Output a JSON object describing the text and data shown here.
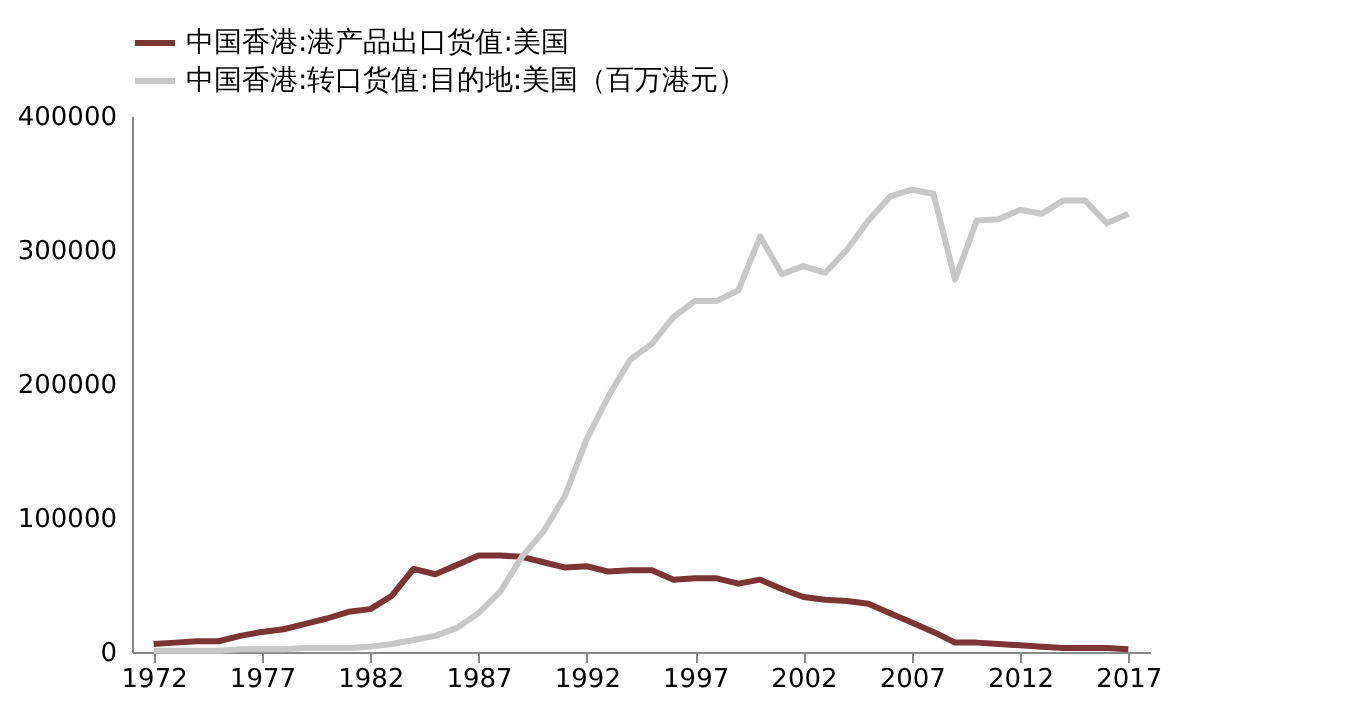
{
  "chart_data": {
    "type": "line",
    "x": [
      1972,
      1973,
      1974,
      1975,
      1976,
      1977,
      1978,
      1979,
      1980,
      1981,
      1982,
      1983,
      1984,
      1985,
      1986,
      1987,
      1988,
      1989,
      1990,
      1991,
      1992,
      1993,
      1994,
      1995,
      1996,
      1997,
      1998,
      1999,
      2000,
      2001,
      2002,
      2003,
      2004,
      2005,
      2006,
      2007,
      2008,
      2009,
      2010,
      2011,
      2012,
      2013,
      2014,
      2015,
      2016,
      2017
    ],
    "series": [
      {
        "name": "中国香港:港产品出口货值:美国",
        "color": "#7b3535",
        "values": [
          6000,
          7000,
          8000,
          8000,
          12000,
          15000,
          17000,
          21000,
          25000,
          30000,
          32000,
          42000,
          62000,
          58000,
          65000,
          72000,
          72000,
          71000,
          67000,
          63000,
          64000,
          60000,
          61000,
          61000,
          54000,
          55000,
          55000,
          51000,
          54000,
          47000,
          41000,
          39000,
          38000,
          36000,
          29000,
          22000,
          15000,
          7000,
          7000,
          6000,
          5000,
          4000,
          3000,
          3000,
          3000,
          2000
        ]
      },
      {
        "name": "中国香港:转口货值:目的地:美国（百万港元）",
        "color": "#c8c8c8",
        "values": [
          1000,
          1000,
          1000,
          1000,
          2000,
          2000,
          2000,
          3000,
          3000,
          3000,
          4000,
          6000,
          9000,
          12000,
          18000,
          29000,
          45000,
          71000,
          90000,
          117000,
          159000,
          191000,
          218000,
          230000,
          250000,
          262000,
          262000,
          270000,
          310000,
          282000,
          288000,
          283000,
          300000,
          322000,
          340000,
          345000,
          342000,
          278000,
          322000,
          323000,
          330000,
          327000,
          337000,
          337000,
          320000,
          327000
        ]
      }
    ],
    "xlim": [
      1971,
      2018
    ],
    "xticks": [
      1972,
      1977,
      1982,
      1987,
      1992,
      1997,
      2002,
      2007,
      2012,
      2017
    ],
    "ylim": [
      0,
      400000
    ],
    "yticks": [
      0,
      100000,
      200000,
      300000,
      400000
    ],
    "grid": false,
    "legend": "top left",
    "marker": "none",
    "line_style": "solid"
  }
}
